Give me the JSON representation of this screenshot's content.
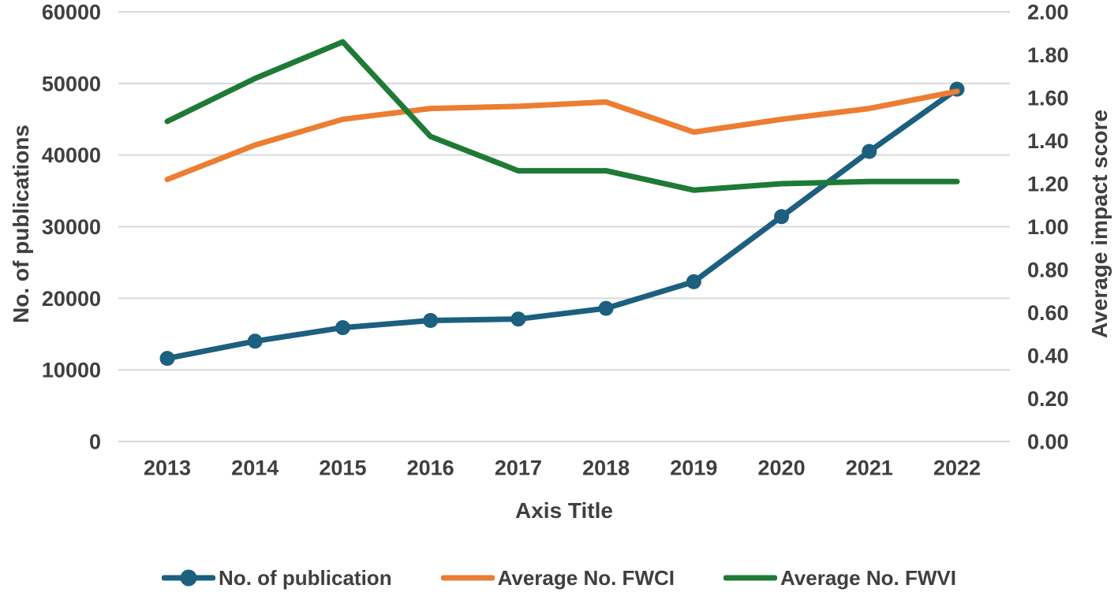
{
  "chart_data": {
    "type": "line",
    "title": "",
    "categories": [
      "2013",
      "2014",
      "2015",
      "2016",
      "2017",
      "2018",
      "2019",
      "2020",
      "2021",
      "2022"
    ],
    "series": [
      {
        "name": "No. of publication",
        "axis": "left",
        "color": "#1C5F7E",
        "marker": true,
        "values": [
          11600,
          14000,
          15900,
          16900,
          17100,
          18600,
          22300,
          31400,
          40500,
          49200
        ]
      },
      {
        "name": "Average No. FWCI",
        "axis": "right",
        "color": "#ED7D31",
        "marker": false,
        "values": [
          1.22,
          1.38,
          1.5,
          1.55,
          1.56,
          1.58,
          1.44,
          1.5,
          1.55,
          1.63
        ]
      },
      {
        "name": "Average No. FWVI",
        "axis": "right",
        "color": "#1E7A34",
        "marker": false,
        "values": [
          1.49,
          1.69,
          1.86,
          1.42,
          1.26,
          1.26,
          1.17,
          1.2,
          1.21,
          1.21
        ]
      }
    ],
    "xlabel": "Axis Title",
    "ylabel_left": "No. of publications",
    "ylabel_right": "Average impact score",
    "ylim_left": [
      0,
      60000
    ],
    "ylim_right": [
      0.0,
      2.0
    ],
    "left_ticks": [
      "0",
      "10000",
      "20000",
      "30000",
      "40000",
      "50000",
      "60000"
    ],
    "right_ticks": [
      "0.00",
      "0.20",
      "0.40",
      "0.60",
      "0.80",
      "1.00",
      "1.20",
      "1.40",
      "1.60",
      "1.80",
      "2.00"
    ],
    "grid": "horizontal",
    "legend_position": "bottom"
  },
  "colors": {
    "background": "#FFFFFF",
    "text": "#3F3F3F",
    "gridline": "#D9D9D9",
    "series_publications": "#1C5F7E",
    "series_fwci": "#ED7D31",
    "series_fwvi": "#1E7A34"
  }
}
